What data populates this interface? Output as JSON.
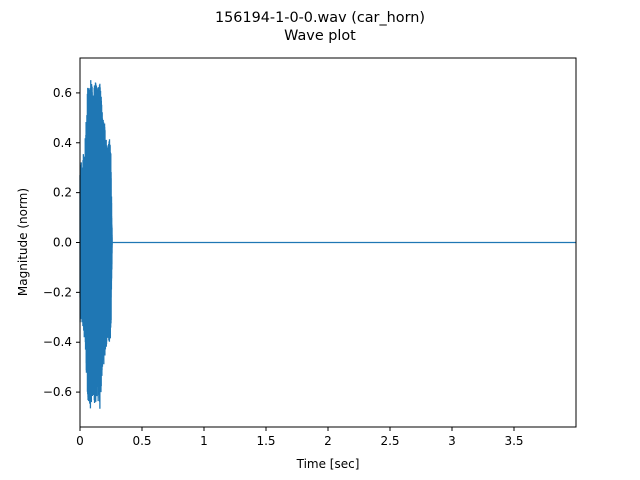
{
  "chart_data": {
    "type": "line",
    "title": "156194-1-0-0.wav (car_horn)",
    "subtitle": "Wave plot",
    "xlabel": "Time [sec]",
    "ylabel": "Magnitude (norm)",
    "xlim": [
      0,
      4.0
    ],
    "ylim": [
      -0.74,
      0.74
    ],
    "x_ticks": [
      0,
      0.5,
      1,
      1.5,
      2,
      2.5,
      3,
      3.5
    ],
    "x_tick_labels": [
      "0",
      "0.5",
      "1",
      "1.5",
      "2",
      "2.5",
      "3",
      "3.5"
    ],
    "y_ticks": [
      -0.6,
      -0.4,
      -0.2,
      0.0,
      0.2,
      0.4,
      0.6
    ],
    "y_tick_labels": [
      "−0.6",
      "−0.4",
      "−0.2",
      "0.0",
      "0.2",
      "0.4",
      "0.6"
    ],
    "grid": false,
    "legend": false,
    "series": [
      {
        "color": "#1f77b4",
        "description_points": {
          "time": [
            0.0,
            0.02,
            0.04,
            0.06,
            0.08,
            0.1,
            0.12,
            0.14,
            0.16,
            0.18,
            0.2,
            0.22,
            0.24,
            0.25,
            0.26,
            4.0
          ],
          "envelope": [
            0.32,
            0.33,
            0.4,
            0.62,
            0.68,
            0.62,
            0.66,
            0.63,
            0.67,
            0.52,
            0.48,
            0.4,
            0.42,
            0.36,
            0.0,
            0.0
          ]
        }
      }
    ]
  }
}
